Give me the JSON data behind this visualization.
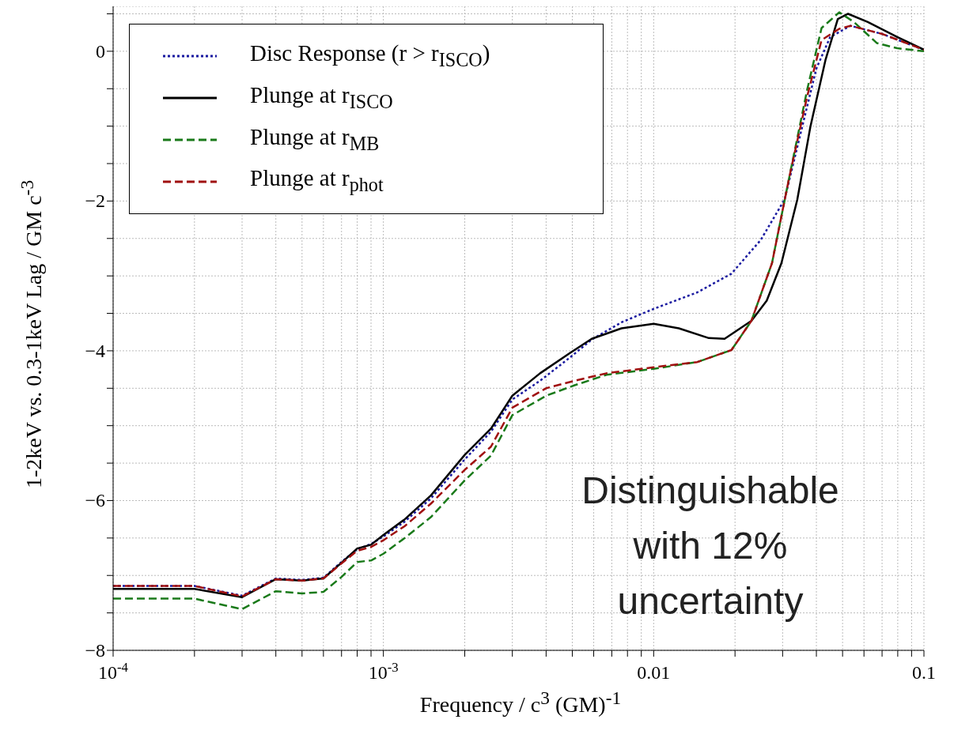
{
  "chart_data": {
    "type": "line",
    "xlabel": "Frequency / c$^{3}$ (GM)$^{-1}$",
    "ylabel": "1-2keV vs. 0.3-1keV Lag / GM c$^{-3}$",
    "log": "x",
    "grid": true,
    "legend": "top left",
    "xlim": [
      0.0001,
      0.1
    ],
    "ylim": [
      -8,
      0.6
    ],
    "xticks": [
      {
        "value": 0.0001,
        "label": "10$^{-4}$"
      },
      {
        "value": 0.0002,
        "label": null
      },
      {
        "value": 0.0003,
        "label": null
      },
      {
        "value": 0.0004,
        "label": null
      },
      {
        "value": 0.0005,
        "label": null
      },
      {
        "value": 0.0006,
        "label": null
      },
      {
        "value": 0.0007,
        "label": null
      },
      {
        "value": 0.0008,
        "label": null
      },
      {
        "value": 0.0009,
        "label": null
      },
      {
        "value": 0.001,
        "label": "10$^{-3}$"
      },
      {
        "value": 0.002,
        "label": null
      },
      {
        "value": 0.003,
        "label": null
      },
      {
        "value": 0.004,
        "label": null
      },
      {
        "value": 0.005,
        "label": null
      },
      {
        "value": 0.006,
        "label": null
      },
      {
        "value": 0.007,
        "label": null
      },
      {
        "value": 0.008,
        "label": null
      },
      {
        "value": 0.009,
        "label": null
      },
      {
        "value": 0.01,
        "label": "0.01"
      },
      {
        "value": 0.02,
        "label": null
      },
      {
        "value": 0.03,
        "label": null
      },
      {
        "value": 0.04,
        "label": null
      },
      {
        "value": 0.05,
        "label": null
      },
      {
        "value": 0.06,
        "label": null
      },
      {
        "value": 0.07,
        "label": null
      },
      {
        "value": 0.08,
        "label": null
      },
      {
        "value": 0.09,
        "label": null
      },
      {
        "value": 0.1,
        "label": "0.1"
      }
    ],
    "yticks": [
      {
        "value": -8,
        "label": "−8"
      },
      {
        "value": -7.5,
        "label": null
      },
      {
        "value": -7,
        "label": null
      },
      {
        "value": -6.5,
        "label": null
      },
      {
        "value": -6,
        "label": "−6"
      },
      {
        "value": -5.5,
        "label": null
      },
      {
        "value": -5,
        "label": null
      },
      {
        "value": -4.5,
        "label": null
      },
      {
        "value": -4,
        "label": "−4"
      },
      {
        "value": -3.5,
        "label": null
      },
      {
        "value": -3,
        "label": null
      },
      {
        "value": -2.5,
        "label": null
      },
      {
        "value": -2,
        "label": "−2"
      },
      {
        "value": -1.5,
        "label": null
      },
      {
        "value": -1,
        "label": null
      },
      {
        "value": -0.5,
        "label": null
      },
      {
        "value": 0,
        "label": "0"
      },
      {
        "value": 0.5,
        "label": null
      }
    ],
    "annotations": [
      "Distinguishable with 12% uncertainty"
    ],
    "series": [
      {
        "name": "Disc Response (r > r$_{ISCO}$)",
        "color": "#1a1aa0",
        "line_style": "dotted",
        "x": [
          0.0001,
          0.0002,
          0.0003,
          0.0004,
          0.0005,
          0.0006,
          0.0007,
          0.0008,
          0.0009,
          0.001,
          0.0012,
          0.0015,
          0.002,
          0.0025,
          0.003,
          0.0038,
          0.0049,
          0.0059,
          0.0076,
          0.01,
          0.0145,
          0.0194,
          0.0249,
          0.0305,
          0.035,
          0.04,
          0.045,
          0.0535,
          0.0702,
          0.1
        ],
        "values": [
          -7.14,
          -7.14,
          -7.27,
          -7.04,
          -7.06,
          -7.03,
          -6.82,
          -6.65,
          -6.58,
          -6.48,
          -6.28,
          -5.97,
          -5.45,
          -5.08,
          -4.65,
          -4.4,
          -4.09,
          -3.85,
          -3.62,
          -3.44,
          -3.22,
          -2.97,
          -2.52,
          -1.98,
          -1.09,
          -0.23,
          0.19,
          0.34,
          0.23,
          0.02
        ]
      },
      {
        "name": "Plunge at r$_{ISCO}$",
        "color": "#000000",
        "line_style": "solid",
        "x": [
          0.0001,
          0.0002,
          0.0003,
          0.0004,
          0.0005,
          0.0006,
          0.0007,
          0.0008,
          0.0009,
          0.001,
          0.0012,
          0.0015,
          0.002,
          0.0025,
          0.003,
          0.0038,
          0.0049,
          0.0059,
          0.0076,
          0.01,
          0.0124,
          0.016,
          0.0183,
          0.023,
          0.0262,
          0.0297,
          0.034,
          0.038,
          0.0432,
          0.048,
          0.0524,
          0.062,
          0.0797,
          0.1
        ],
        "values": [
          -7.18,
          -7.18,
          -7.29,
          -7.05,
          -7.07,
          -7.04,
          -6.83,
          -6.64,
          -6.59,
          -6.46,
          -6.25,
          -5.93,
          -5.39,
          -5.04,
          -4.6,
          -4.3,
          -4.03,
          -3.84,
          -3.7,
          -3.64,
          -3.7,
          -3.83,
          -3.84,
          -3.6,
          -3.33,
          -2.83,
          -1.98,
          -1.01,
          -0.12,
          0.43,
          0.5,
          0.39,
          0.19,
          0.02
        ]
      },
      {
        "name": "Plunge at r$_{MB}$",
        "color": "#1a7a1a",
        "line_style": "dashed",
        "x": [
          0.0001,
          0.0002,
          0.0003,
          0.0004,
          0.0005,
          0.0006,
          0.0007,
          0.0008,
          0.0009,
          0.001,
          0.0012,
          0.0015,
          0.002,
          0.0025,
          0.003,
          0.004,
          0.0051,
          0.0067,
          0.01,
          0.0145,
          0.0194,
          0.023,
          0.0274,
          0.0318,
          0.037,
          0.0418,
          0.0486,
          0.0551,
          0.0669,
          0.0797,
          0.1
        ],
        "values": [
          -7.31,
          -7.31,
          -7.45,
          -7.21,
          -7.24,
          -7.22,
          -7.02,
          -6.82,
          -6.8,
          -6.71,
          -6.5,
          -6.22,
          -5.73,
          -5.4,
          -4.86,
          -4.6,
          -4.46,
          -4.32,
          -4.24,
          -4.15,
          -3.99,
          -3.6,
          -2.83,
          -1.67,
          -0.51,
          0.31,
          0.52,
          0.39,
          0.11,
          0.04,
          0.0
        ]
      },
      {
        "name": "Plunge at r$_{phot}$",
        "color": "#a01010",
        "line_style": "dashed",
        "x": [
          0.0001,
          0.0002,
          0.0003,
          0.0004,
          0.0005,
          0.0006,
          0.0007,
          0.0008,
          0.0009,
          0.001,
          0.0012,
          0.0015,
          0.002,
          0.0025,
          0.003,
          0.004,
          0.0051,
          0.0067,
          0.01,
          0.0145,
          0.0194,
          0.023,
          0.0274,
          0.0318,
          0.037,
          0.0418,
          0.0486,
          0.0535,
          0.0702,
          0.1
        ],
        "values": [
          -7.14,
          -7.14,
          -7.28,
          -7.05,
          -7.07,
          -7.04,
          -6.84,
          -6.67,
          -6.62,
          -6.53,
          -6.34,
          -6.04,
          -5.59,
          -5.28,
          -4.76,
          -4.5,
          -4.4,
          -4.3,
          -4.22,
          -4.15,
          -3.99,
          -3.6,
          -2.83,
          -1.67,
          -0.6,
          0.15,
          0.3,
          0.34,
          0.23,
          0.02
        ]
      }
    ]
  }
}
